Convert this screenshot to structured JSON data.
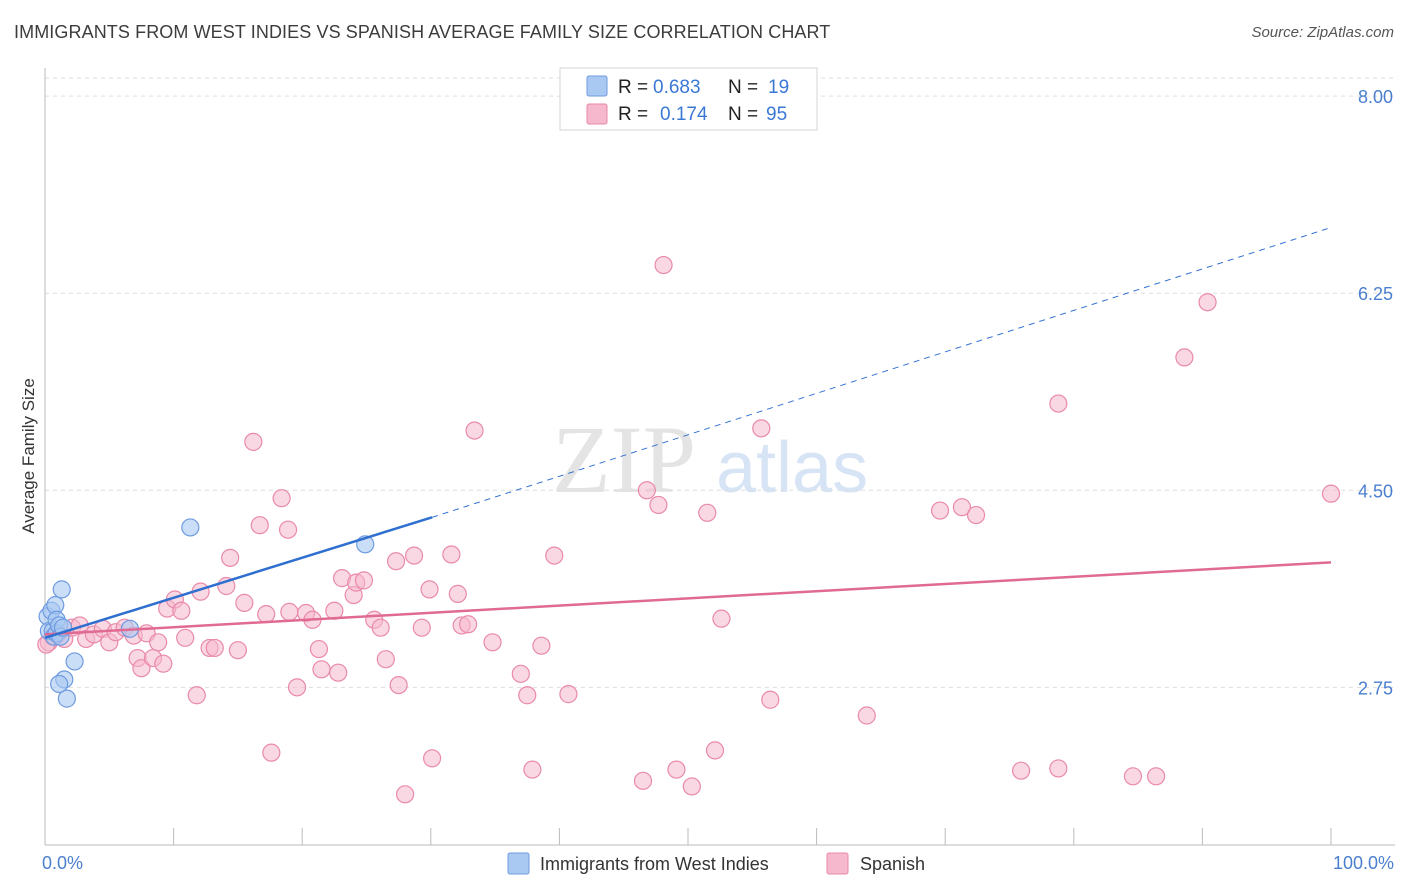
{
  "header": {
    "title": "IMMIGRANTS FROM WEST INDIES VS SPANISH AVERAGE FAMILY SIZE CORRELATION CHART",
    "source": "Source: ZipAtlas.com"
  },
  "watermark": {
    "zip": "ZIP",
    "atlas": "atlas"
  },
  "colors": {
    "blue_fill": "#a9c8f2",
    "blue_stroke": "#6f9be0",
    "blue_line": "#2f6fd0",
    "pink_fill": "#f6b8cc",
    "pink_stroke": "#e98aa8",
    "pink_line": "#e06a94",
    "grid": "#dddddd",
    "axis_text": "#4a7fcf"
  },
  "legend": {
    "rows": [
      {
        "r_label": "R =",
        "r_value": "0.683",
        "n_label": "N =",
        "n_value": "19"
      },
      {
        "r_label": "R =",
        "r_value": "0.174",
        "n_label": "N =",
        "n_value": "95"
      }
    ]
  },
  "chart_data": {
    "type": "scatter",
    "title": "IMMIGRANTS FROM WEST INDIES VS SPANISH AVERAGE FAMILY SIZE CORRELATION CHART",
    "xlabel": "",
    "ylabel": "Average Family Size",
    "xlim": [
      0,
      100
    ],
    "ylim": [
      1.35,
      8.25
    ],
    "x_tick_labels": {
      "left": "0.0%",
      "right": "100.0%"
    },
    "y_ticks": [
      {
        "value": 2.75,
        "label": "2.75"
      },
      {
        "value": 4.5,
        "label": "4.50"
      },
      {
        "value": 6.25,
        "label": "6.25"
      },
      {
        "value": 8.0,
        "label": "8.00"
      }
    ],
    "series": [
      {
        "name": "Immigrants from West Indies",
        "r": 0.683,
        "n": 19,
        "points": [
          [
            0.2,
            3.38
          ],
          [
            0.3,
            3.25
          ],
          [
            0.5,
            3.43
          ],
          [
            0.6,
            3.25
          ],
          [
            0.7,
            3.2
          ],
          [
            0.8,
            3.48
          ],
          [
            0.9,
            3.35
          ],
          [
            0.9,
            3.23
          ],
          [
            1.1,
            3.3
          ],
          [
            1.2,
            3.2
          ],
          [
            1.3,
            3.62
          ],
          [
            1.4,
            3.28
          ],
          [
            1.5,
            2.82
          ],
          [
            1.7,
            2.65
          ],
          [
            2.3,
            2.98
          ],
          [
            1.1,
            2.78
          ],
          [
            11.3,
            4.17
          ],
          [
            24.9,
            4.02
          ],
          [
            6.6,
            3.27
          ]
        ],
        "trend": {
          "x0": 0,
          "y0": 3.19,
          "x1": 30.1,
          "y1": 4.26,
          "dash_x1": 99.9,
          "dash_y1": 6.83
        }
      },
      {
        "name": "Spanish",
        "r": 0.174,
        "n": 95,
        "points": [
          [
            0.3,
            3.15
          ],
          [
            0.6,
            3.2
          ],
          [
            1.0,
            3.22
          ],
          [
            1.5,
            3.18
          ],
          [
            2.1,
            3.28
          ],
          [
            2.7,
            3.3
          ],
          [
            3.2,
            3.18
          ],
          [
            3.8,
            3.22
          ],
          [
            4.5,
            3.27
          ],
          [
            5.0,
            3.15
          ],
          [
            5.5,
            3.24
          ],
          [
            6.2,
            3.28
          ],
          [
            6.9,
            3.21
          ],
          [
            7.2,
            3.01
          ],
          [
            7.5,
            2.92
          ],
          [
            7.9,
            3.23
          ],
          [
            8.4,
            3.01
          ],
          [
            8.8,
            3.15
          ],
          [
            9.2,
            2.96
          ],
          [
            9.5,
            3.45
          ],
          [
            10.1,
            3.53
          ],
          [
            10.6,
            3.43
          ],
          [
            10.9,
            3.19
          ],
          [
            11.8,
            2.68
          ],
          [
            12.1,
            3.6
          ],
          [
            12.8,
            3.1
          ],
          [
            13.2,
            3.1
          ],
          [
            14.1,
            3.65
          ],
          [
            14.4,
            3.9
          ],
          [
            15.0,
            3.08
          ],
          [
            15.5,
            3.5
          ],
          [
            16.2,
            4.93
          ],
          [
            16.7,
            4.19
          ],
          [
            17.2,
            3.4
          ],
          [
            17.6,
            2.17
          ],
          [
            18.4,
            4.43
          ],
          [
            18.9,
            4.15
          ],
          [
            19.0,
            3.42
          ],
          [
            19.6,
            2.75
          ],
          [
            20.3,
            3.41
          ],
          [
            20.8,
            3.35
          ],
          [
            21.3,
            3.09
          ],
          [
            21.5,
            2.91
          ],
          [
            22.5,
            3.43
          ],
          [
            22.8,
            2.88
          ],
          [
            23.1,
            3.72
          ],
          [
            24.0,
            3.57
          ],
          [
            24.2,
            3.68
          ],
          [
            24.8,
            3.7
          ],
          [
            25.6,
            3.35
          ],
          [
            26.1,
            3.28
          ],
          [
            26.5,
            3.0
          ],
          [
            27.3,
            3.87
          ],
          [
            27.5,
            2.77
          ],
          [
            28.0,
            1.8
          ],
          [
            28.7,
            3.92
          ],
          [
            29.3,
            3.28
          ],
          [
            29.9,
            3.62
          ],
          [
            30.1,
            2.12
          ],
          [
            31.6,
            3.93
          ],
          [
            32.1,
            3.58
          ],
          [
            32.4,
            3.3
          ],
          [
            32.9,
            3.31
          ],
          [
            33.4,
            5.03
          ],
          [
            34.8,
            3.15
          ],
          [
            37.0,
            2.87
          ],
          [
            37.5,
            2.68
          ],
          [
            37.9,
            2.02
          ],
          [
            38.6,
            3.12
          ],
          [
            39.6,
            3.92
          ],
          [
            40.7,
            2.69
          ],
          [
            46.5,
            1.92
          ],
          [
            46.8,
            4.5
          ],
          [
            48.1,
            6.5
          ],
          [
            47.7,
            4.37
          ],
          [
            49.1,
            2.02
          ],
          [
            50.3,
            1.87
          ],
          [
            51.5,
            4.3
          ],
          [
            52.1,
            2.19
          ],
          [
            52.6,
            3.36
          ],
          [
            55.7,
            5.05
          ],
          [
            56.4,
            2.64
          ],
          [
            63.9,
            2.5
          ],
          [
            69.6,
            4.32
          ],
          [
            71.3,
            4.35
          ],
          [
            72.4,
            4.28
          ],
          [
            75.9,
            2.01
          ],
          [
            78.8,
            5.27
          ],
          [
            78.8,
            2.03
          ],
          [
            84.6,
            1.96
          ],
          [
            86.4,
            1.96
          ],
          [
            88.6,
            5.68
          ],
          [
            90.4,
            6.17
          ],
          [
            100.0,
            4.47
          ],
          [
            0.1,
            3.13
          ]
        ],
        "trend": {
          "x0": 0,
          "y0": 3.22,
          "x1": 100,
          "y1": 3.86
        }
      }
    ]
  }
}
